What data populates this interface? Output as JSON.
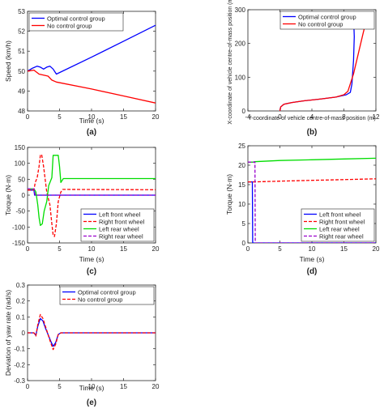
{
  "chart_data": [
    {
      "panel": "(a)",
      "type": "line",
      "xlabel": "Time (s)",
      "ylabel": "Speed (km/h)",
      "xlim": [
        0,
        20
      ],
      "ylim": [
        48,
        53
      ],
      "xticks": [
        0,
        5,
        10,
        15,
        20
      ],
      "yticks": [
        48,
        49,
        50,
        51,
        52,
        53
      ],
      "legend": "top-left",
      "series": [
        {
          "name": "Optimal control group",
          "color": "#0000ff",
          "dash": "",
          "x": [
            0,
            0.8,
            1.5,
            2.0,
            2.5,
            3.0,
            3.5,
            4.0,
            4.5,
            10,
            15,
            20
          ],
          "y": [
            50.0,
            50.15,
            50.25,
            50.2,
            50.1,
            50.2,
            50.25,
            50.1,
            49.85,
            50.7,
            51.5,
            52.3
          ]
        },
        {
          "name": "No control group",
          "color": "#ff0000",
          "dash": "",
          "x": [
            0,
            1.0,
            1.8,
            2.5,
            3.2,
            3.8,
            4.5,
            10,
            15,
            20
          ],
          "y": [
            50.0,
            50.05,
            49.85,
            49.8,
            49.75,
            49.55,
            49.45,
            49.1,
            48.75,
            48.4
          ]
        }
      ]
    },
    {
      "panel": "(b)",
      "type": "line",
      "xlabel": "Y-coordinate of vehicle centre-of-mass position (m)",
      "ylabel": "X-coordinate of vehicle centre-of-mass position (m)",
      "xlim": [
        -4,
        12
      ],
      "ylim": [
        0,
        300
      ],
      "xticks": [
        -4,
        0,
        4,
        8,
        12
      ],
      "yticks": [
        0,
        100,
        200,
        300
      ],
      "legend": "top-right",
      "series": [
        {
          "name": "Optimal control group",
          "color": "#0000ff",
          "dash": "",
          "x": [
            0,
            0.1,
            0.5,
            1.5,
            3,
            5,
            7,
            8.3,
            8.8,
            9.0,
            9.2,
            9.3,
            9.2
          ],
          "y": [
            0,
            12,
            20,
            25,
            30,
            35,
            41,
            48,
            55,
            80,
            150,
            220,
            280
          ]
        },
        {
          "name": "No control group",
          "color": "#ff0000",
          "dash": "",
          "x": [
            0,
            0.1,
            0.5,
            1.5,
            3,
            5,
            7,
            8.0,
            8.5,
            9.2,
            9.8,
            10.4,
            10.8
          ],
          "y": [
            0,
            12,
            20,
            25,
            30,
            35,
            41,
            48,
            58,
            110,
            170,
            230,
            268
          ]
        }
      ]
    },
    {
      "panel": "(c)",
      "type": "line",
      "xlabel": "Time (s)",
      "ylabel": "Torque (N·m)",
      "xlim": [
        0,
        20
      ],
      "ylim": [
        -150,
        150
      ],
      "xticks": [
        0,
        5,
        10,
        15,
        20
      ],
      "yticks": [
        -150,
        -100,
        -50,
        0,
        50,
        100,
        150
      ],
      "legend": "bottom-right",
      "series": [
        {
          "name": "Left front wheel",
          "color": "#0000ff",
          "dash": "",
          "x": [
            0,
            1.0,
            1.1,
            20
          ],
          "y": [
            16,
            16,
            0,
            0
          ]
        },
        {
          "name": "Right front wheel",
          "color": "#ff0000",
          "dash": "4,2",
          "x": [
            0,
            1.0,
            1.2,
            1.5,
            1.8,
            2.0,
            2.2,
            2.5,
            3.0,
            3.5,
            3.8,
            4.0,
            4.2,
            4.5,
            4.8,
            5.2,
            5.5,
            6.0,
            20
          ],
          "y": [
            16,
            16,
            40,
            55,
            90,
            125,
            128,
            90,
            10,
            -30,
            -90,
            -125,
            -130,
            -90,
            -20,
            10,
            18,
            18,
            17
          ]
        },
        {
          "name": "Left rear wheel",
          "color": "#00dd00",
          "dash": "",
          "x": [
            0,
            1.0,
            1.3,
            1.6,
            1.8,
            2.0,
            2.3,
            2.6,
            3.0,
            3.3,
            3.8,
            4.0,
            4.3,
            4.8,
            5.0,
            5.2,
            5.6,
            6.0,
            20
          ],
          "y": [
            20,
            20,
            10,
            -30,
            -70,
            -95,
            -90,
            -50,
            -20,
            30,
            55,
            125,
            125,
            125,
            90,
            40,
            52,
            52,
            52
          ]
        },
        {
          "name": "Right rear wheel",
          "color": "#9900cc",
          "dash": "4,2",
          "x": [
            0,
            1.0,
            1.2,
            20
          ],
          "y": [
            20,
            20,
            0,
            0
          ]
        }
      ]
    },
    {
      "panel": "(d)",
      "type": "line",
      "xlabel": "Time (s)",
      "ylabel": "Torque (N·m)",
      "xlim": [
        0,
        20
      ],
      "ylim": [
        0,
        25
      ],
      "xticks": [
        0,
        5,
        10,
        15,
        20
      ],
      "yticks": [
        0,
        5,
        10,
        15,
        20,
        25
      ],
      "legend": "bottom-right",
      "series": [
        {
          "name": "Left front wheel",
          "color": "#0000ff",
          "dash": "",
          "x": [
            0,
            0.7,
            0.75,
            20
          ],
          "y": [
            15.7,
            15.7,
            0,
            0
          ]
        },
        {
          "name": "Right front wheel",
          "color": "#ff0000",
          "dash": "4,2",
          "x": [
            0,
            0.8,
            1.0,
            5,
            10,
            15,
            20
          ],
          "y": [
            15.7,
            15.7,
            15.7,
            15.9,
            16.1,
            16.3,
            16.5
          ]
        },
        {
          "name": "Left rear wheel",
          "color": "#00dd00",
          "dash": "",
          "x": [
            0,
            0.8,
            1.0,
            5,
            10,
            15,
            20
          ],
          "y": [
            20.8,
            20.8,
            20.9,
            21.2,
            21.4,
            21.6,
            21.8
          ]
        },
        {
          "name": "Right rear wheel",
          "color": "#9900cc",
          "dash": "4,2",
          "x": [
            0,
            1.1,
            1.15,
            20
          ],
          "y": [
            20.8,
            20.8,
            0,
            0
          ]
        }
      ]
    },
    {
      "panel": "(e)",
      "type": "line",
      "xlabel": "Time (s)",
      "ylabel": "Deviation of yaw rate (rad/s)",
      "xlim": [
        0,
        20
      ],
      "ylim": [
        -0.3,
        0.3
      ],
      "xticks": [
        0,
        5,
        10,
        15,
        20
      ],
      "yticks": [
        -0.3,
        -0.2,
        -0.1,
        0,
        0.1,
        0.2,
        0.3
      ],
      "legend": "top-right",
      "series": [
        {
          "name": "Optimal control group",
          "color": "#0000ff",
          "dash": "",
          "x": [
            0,
            1.0,
            1.3,
            1.6,
            2.0,
            2.4,
            2.8,
            3.2,
            3.6,
            4.0,
            4.4,
            4.8,
            5.2,
            20
          ],
          "y": [
            0,
            0,
            -0.015,
            0.04,
            0.09,
            0.075,
            0.03,
            -0.01,
            -0.05,
            -0.085,
            -0.06,
            -0.01,
            0,
            0
          ]
        },
        {
          "name": "No control group",
          "color": "#ff0000",
          "dash": "4,2",
          "x": [
            0,
            1.0,
            1.3,
            1.6,
            2.0,
            2.4,
            2.8,
            3.2,
            3.6,
            4.0,
            4.4,
            4.8,
            5.2,
            20
          ],
          "y": [
            0,
            0,
            -0.02,
            0.05,
            0.115,
            0.09,
            0.04,
            -0.01,
            -0.06,
            -0.105,
            -0.07,
            -0.01,
            0,
            0
          ]
        }
      ]
    }
  ]
}
